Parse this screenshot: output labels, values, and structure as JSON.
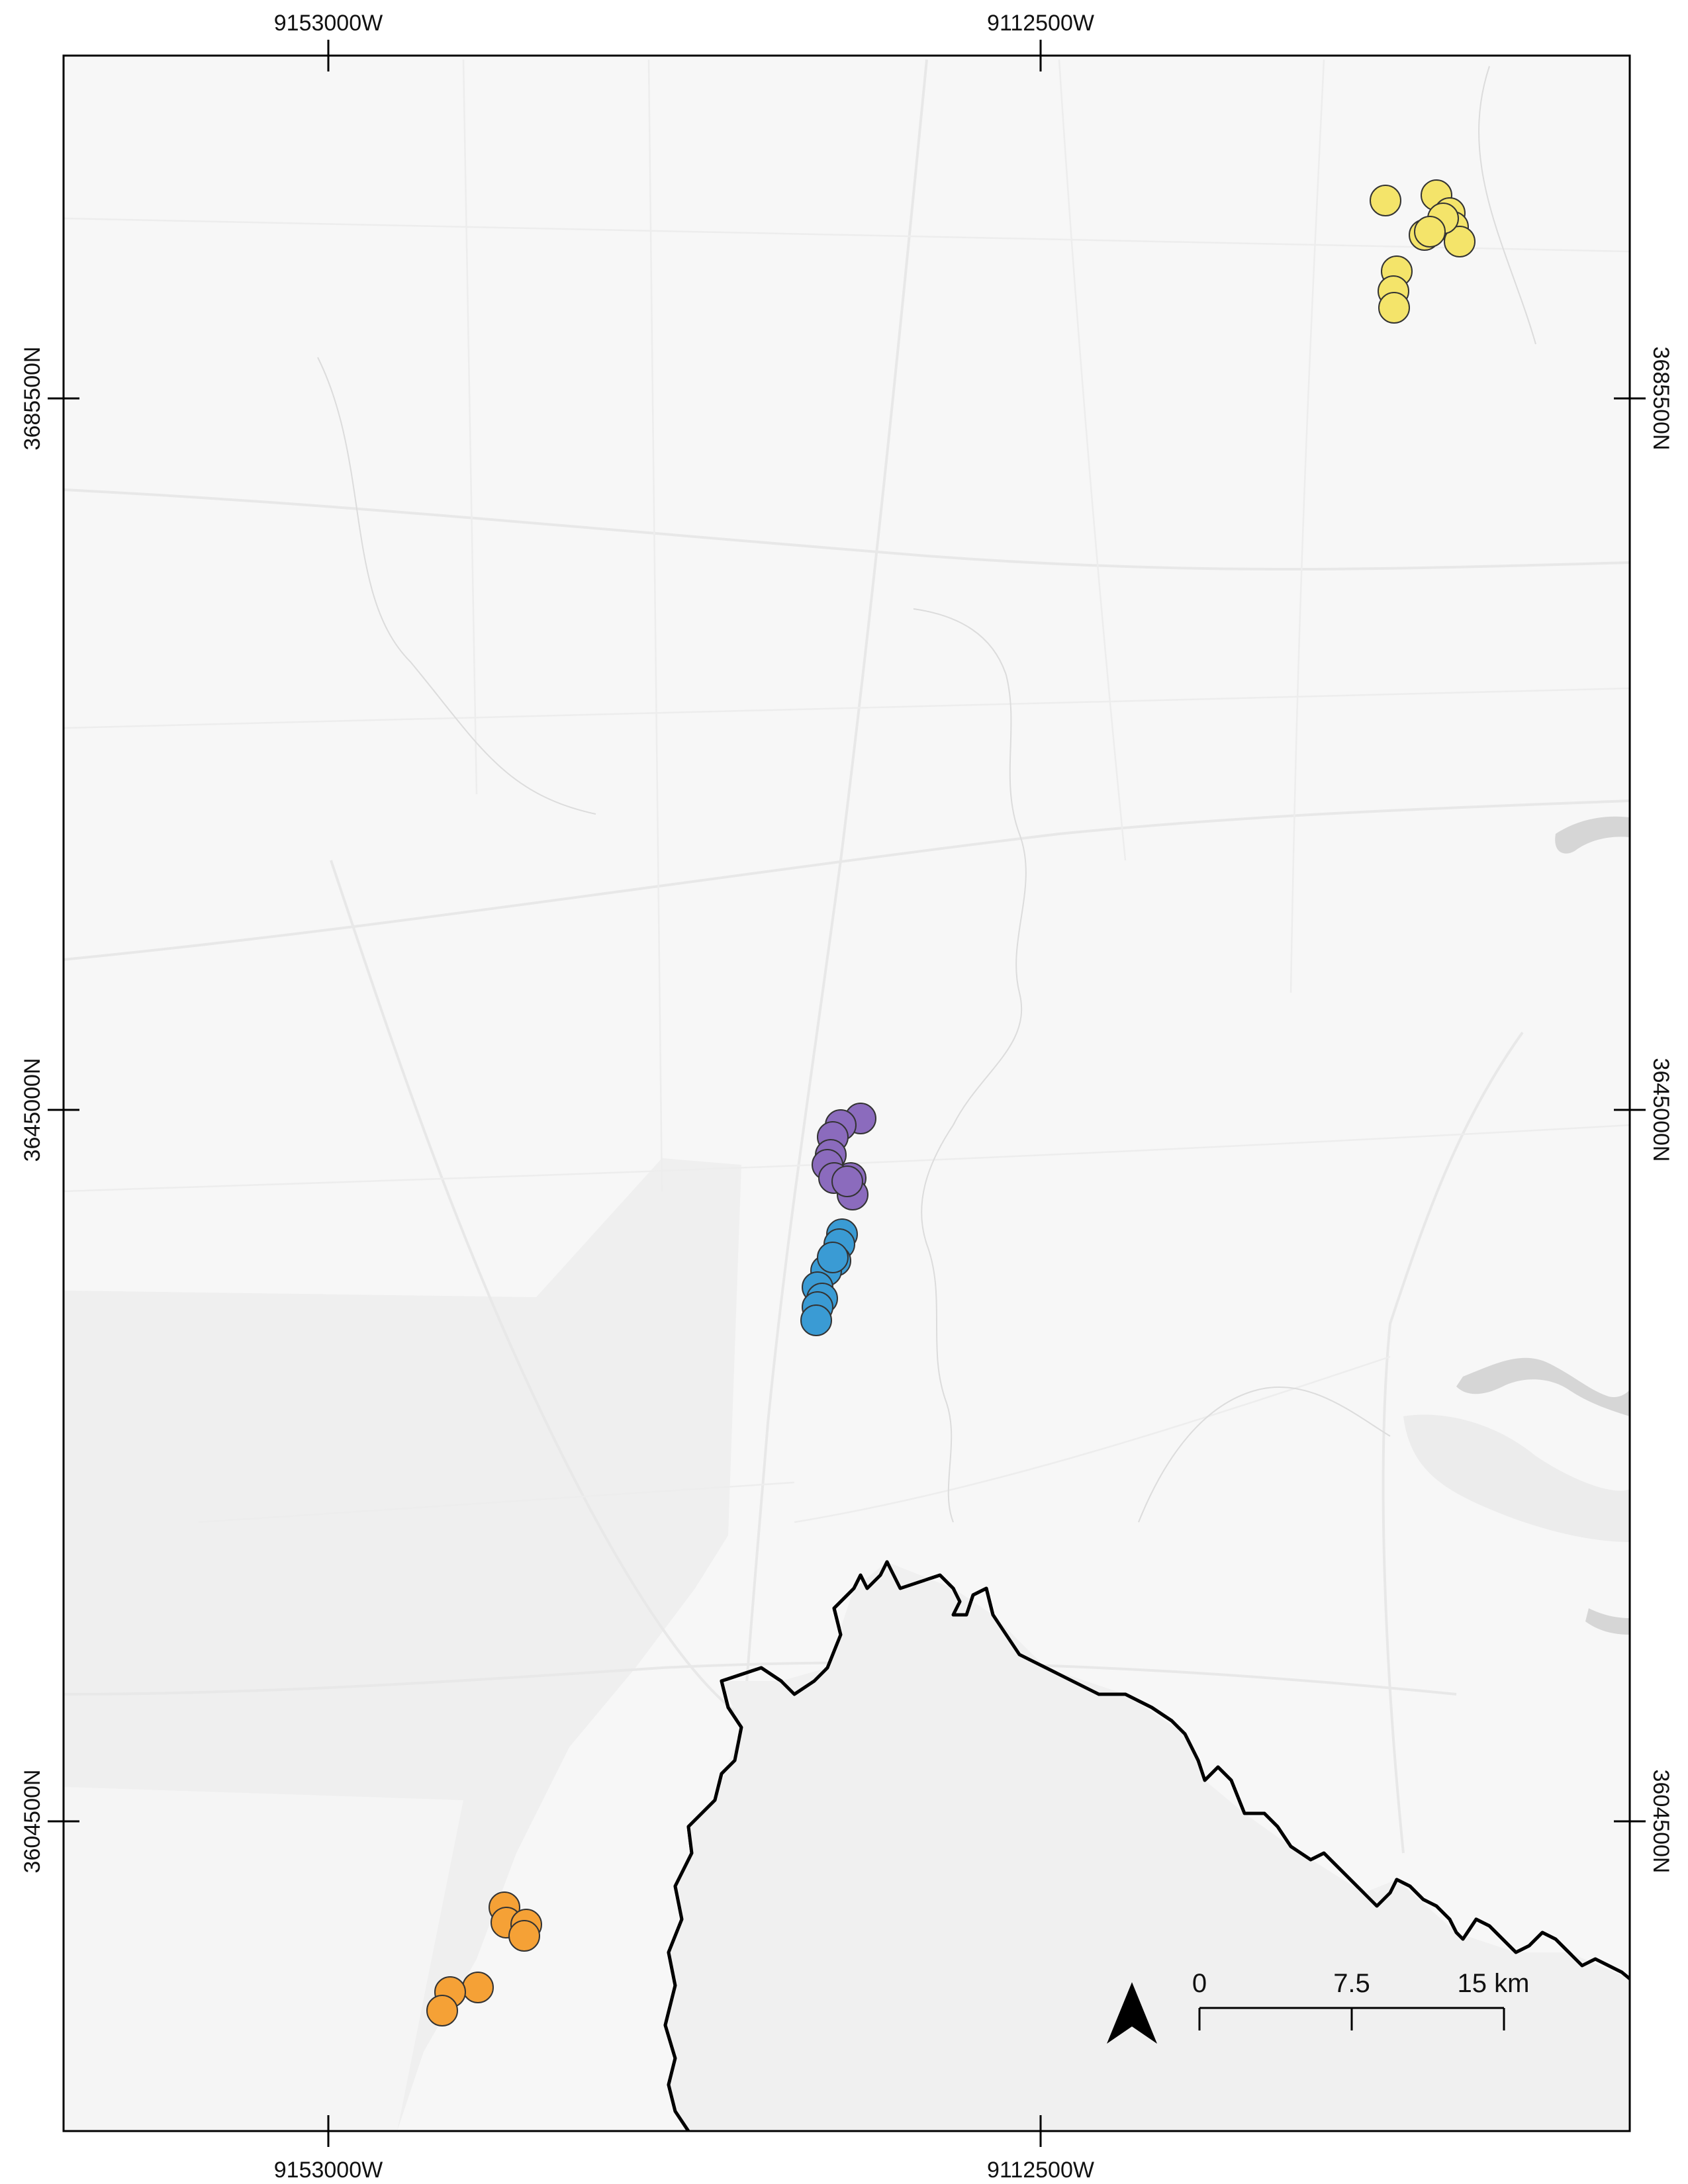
{
  "axes": {
    "top": [
      "9153000W",
      "9112500W"
    ],
    "bottom": [
      "9153000W",
      "9112500W"
    ],
    "left": [
      "3685500N",
      "3645000N",
      "3604500N"
    ],
    "right": [
      "3685500N",
      "3645000N",
      "3604500N"
    ]
  },
  "scale_bar": {
    "labels": [
      "0",
      "7.5",
      "15 km"
    ]
  },
  "north_arrow": {
    "icon": "north-arrow-icon"
  },
  "colors": {
    "yellow": "#f4e46a",
    "purple": "#8b6bbd",
    "blue": "#3a9bd4",
    "orange": "#f5a136",
    "boundary": "#000000",
    "land": "#f7f7f7",
    "landAlt": "#efefef",
    "water": "#d6d6d6"
  },
  "point_groups": [
    {
      "name": "yellow-cluster",
      "color": "#f4e46a",
      "count": 11
    },
    {
      "name": "purple-cluster",
      "color": "#8b6bbd",
      "count": 9
    },
    {
      "name": "blue-cluster",
      "color": "#3a9bd4",
      "count": 9
    },
    {
      "name": "orange-cluster",
      "color": "#f5a136",
      "count": 7
    }
  ]
}
